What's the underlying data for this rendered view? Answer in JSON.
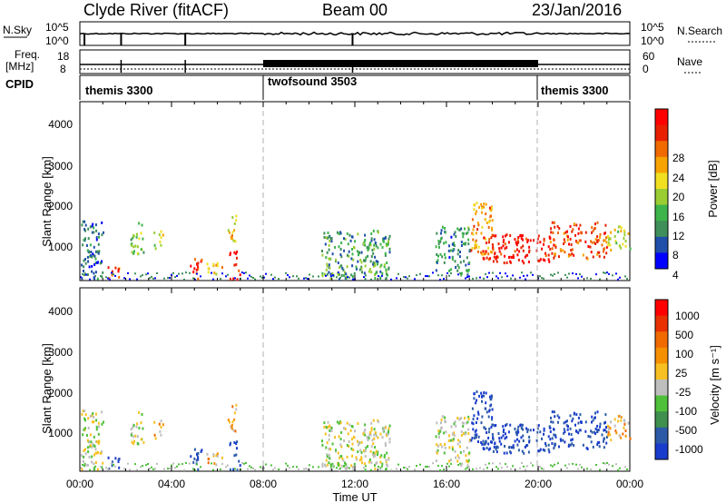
{
  "header": {
    "station": "Clyde River (fitACF)",
    "beam": "Beam 00",
    "date": "23/Jan/2016"
  },
  "nsky": {
    "left_label": "N.Sky",
    "left_ticks": [
      "10^5",
      "10^0"
    ],
    "right_label": "N.Search",
    "right_ticks": [
      "10^5",
      "10^0"
    ]
  },
  "freq": {
    "left_label_1": "Freq.",
    "left_label_2": "[MHz]",
    "left_ticks": [
      "18",
      "8"
    ],
    "right_label": "Nave",
    "right_ticks": [
      "60",
      "0"
    ]
  },
  "cpid": {
    "label": "CPID",
    "segments": [
      {
        "name": "themis 3300",
        "start": 0,
        "end": 8
      },
      {
        "name": "twofsound 3503",
        "start": 8,
        "end": 20
      },
      {
        "name": "themis 3300",
        "start": 20,
        "end": 24
      }
    ]
  },
  "x_axis": {
    "label": "Time UT",
    "ticks": [
      "00:00",
      "04:00",
      "08:00",
      "12:00",
      "16:00",
      "20:00",
      "00:00"
    ]
  },
  "panels": {
    "power": {
      "ylabel": "Slant Range [km]",
      "yticks": [
        "4000",
        "3000",
        "2000",
        "1000"
      ],
      "colorbar_label": "Power [dB]",
      "colorbar_ticks": [
        "28",
        "24",
        "20",
        "16",
        "12",
        "8",
        "4"
      ],
      "colors": [
        "#0000ff",
        "#1f4faa",
        "#3f8f5a",
        "#3cb44a",
        "#9acd32",
        "#f0e020",
        "#f7a400",
        "#f06a00",
        "#e82000",
        "#ff0000"
      ]
    },
    "velocity": {
      "ylabel": "Slant Range [km]",
      "yticks": [
        "4000",
        "3000",
        "2000",
        "1000"
      ],
      "colorbar_label": "Velocity [m s⁻¹]",
      "colorbar_ticks": [
        "1000",
        "500",
        "100",
        "25",
        "-25",
        "-100",
        "-500",
        "-1000"
      ],
      "colors": [
        "#1a3ccc",
        "#2c5aa8",
        "#3f8f4f",
        "#4ec03a",
        "#bebebe",
        "#f7c020",
        "#f59000",
        "#f06a00",
        "#e83000",
        "#ff0000"
      ]
    }
  },
  "chart_data": {
    "type": "heatmap",
    "x_range_hours": [
      0,
      24
    ],
    "y_range_km": [
      180,
      4600
    ],
    "power_range_db": [
      0,
      32
    ],
    "velocity_range": [
      -1200,
      1200
    ],
    "cpid_changes_hours": [
      8,
      20
    ],
    "scatter_regions": [
      {
        "t_start": 0.0,
        "t_end": 1.0,
        "r_min": 180,
        "r_max": 1650,
        "power": 6
      },
      {
        "t_start": 1.2,
        "t_end": 1.7,
        "r_min": 180,
        "r_max": 500,
        "power": 25
      },
      {
        "t_start": 2.2,
        "t_end": 2.8,
        "r_min": 800,
        "r_max": 1600,
        "power": 14
      },
      {
        "t_start": 3.2,
        "t_end": 3.6,
        "r_min": 900,
        "r_max": 1400,
        "power": 15
      },
      {
        "t_start": 4.8,
        "t_end": 5.3,
        "r_min": 180,
        "r_max": 800,
        "power": 28
      },
      {
        "t_start": 5.5,
        "t_end": 6.3,
        "r_min": 300,
        "r_max": 600,
        "power": 20
      },
      {
        "t_start": 6.4,
        "t_end": 6.8,
        "r_min": 1100,
        "r_max": 1800,
        "power": 18
      },
      {
        "t_start": 6.5,
        "t_end": 7.0,
        "r_min": 180,
        "r_max": 900,
        "power": 30
      },
      {
        "t_start": 10.5,
        "t_end": 13.5,
        "r_min": 180,
        "r_max": 1400,
        "power": 10
      },
      {
        "t_start": 15.5,
        "t_end": 17.0,
        "r_min": 300,
        "r_max": 1500,
        "power": 8
      },
      {
        "t_start": 17.0,
        "t_end": 18.0,
        "r_min": 800,
        "r_max": 2100,
        "power": 22
      },
      {
        "t_start": 17.5,
        "t_end": 20.5,
        "r_min": 600,
        "r_max": 1300,
        "power": 30
      },
      {
        "t_start": 20.5,
        "t_end": 23.0,
        "r_min": 700,
        "r_max": 1600,
        "power": 26
      },
      {
        "t_start": 23.0,
        "t_end": 24.0,
        "r_min": 900,
        "r_max": 1500,
        "power": 16
      }
    ]
  }
}
